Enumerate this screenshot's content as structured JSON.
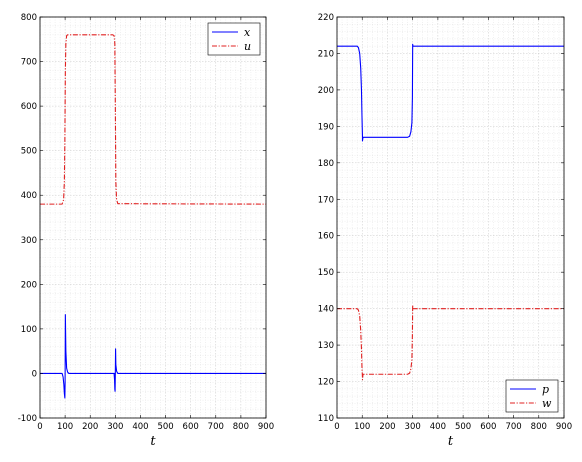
{
  "chart_data": [
    {
      "type": "line",
      "xlabel": "t",
      "xlim": [
        0,
        900
      ],
      "ylim": [
        -100,
        800
      ],
      "xticks": [
        0,
        100,
        200,
        300,
        400,
        500,
        600,
        700,
        800,
        900
      ],
      "yticks": [
        -100,
        0,
        100,
        200,
        300,
        400,
        500,
        600,
        700,
        800
      ],
      "grid": true,
      "legend": "top-right",
      "series": [
        {
          "name": "x",
          "color": "#0000ff",
          "style": "solid",
          "x": [
            0,
            88,
            92,
            95,
            97,
            99,
            100,
            101,
            103,
            106,
            110,
            115,
            300,
            295,
            297,
            298,
            299,
            300,
            301,
            302,
            305,
            310,
            900
          ],
          "y": [
            0,
            0,
            -8,
            -25,
            -45,
            -55,
            -20,
            132,
            50,
            12,
            3,
            0,
            0,
            0,
            -15,
            -35,
            -40,
            0,
            55,
            20,
            5,
            0,
            0
          ]
        },
        {
          "name": "u",
          "color": "#e02020",
          "style": "dashdot",
          "x": [
            0,
            88,
            94,
            97,
            99,
            100,
            101,
            103,
            106,
            110,
            290,
            295,
            298,
            300,
            302,
            305,
            310,
            900
          ],
          "y": [
            380,
            380,
            390,
            430,
            520,
            600,
            680,
            740,
            758,
            760,
            760,
            758,
            740,
            600,
            430,
            390,
            381,
            380
          ]
        }
      ]
    },
    {
      "type": "line",
      "xlabel": "t",
      "xlim": [
        0,
        900
      ],
      "ylim": [
        110,
        220
      ],
      "xticks": [
        0,
        100,
        200,
        300,
        400,
        500,
        600,
        700,
        800,
        900
      ],
      "yticks": [
        110,
        120,
        130,
        140,
        150,
        160,
        170,
        180,
        190,
        200,
        210,
        220
      ],
      "grid": true,
      "legend": "bottom-right",
      "series": [
        {
          "name": "p",
          "color": "#0000ff",
          "style": "solid",
          "x": [
            0,
            80,
            85,
            90,
            94,
            97,
            99,
            101,
            101,
            103,
            106,
            110,
            200,
            280,
            288,
            293,
            297,
            299,
            300,
            301,
            302,
            900
          ],
          "y": [
            212,
            212,
            211.6,
            210,
            206,
            200,
            193,
            187,
            186,
            187,
            187,
            187,
            187,
            187,
            187.3,
            188.5,
            191,
            198,
            212.5,
            212,
            212,
            212
          ]
        },
        {
          "name": "w",
          "color": "#e02020",
          "style": "dashdot",
          "x": [
            0,
            80,
            85,
            90,
            94,
            97,
            99,
            101,
            101,
            103,
            106,
            110,
            200,
            280,
            288,
            293,
            297,
            299,
            300,
            301,
            302,
            900
          ],
          "y": [
            140,
            140,
            139.6,
            138,
            134,
            129,
            124,
            121,
            120.5,
            122,
            122,
            122,
            122,
            122,
            122.3,
            123.5,
            126,
            133,
            141,
            140,
            140,
            140
          ]
        }
      ]
    }
  ]
}
